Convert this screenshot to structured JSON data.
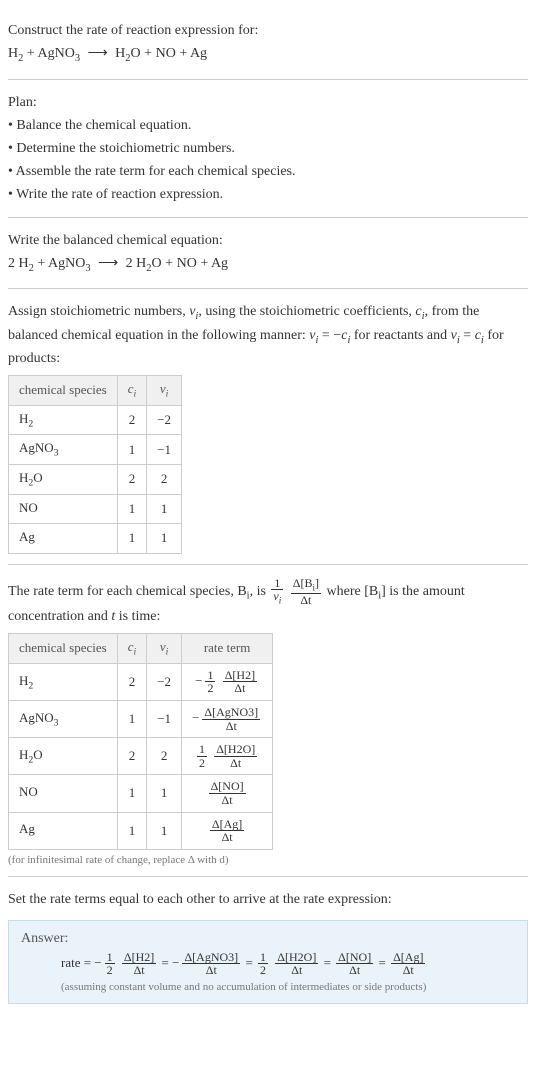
{
  "intro": {
    "prompt": "Construct the rate of reaction expression for:",
    "unbalanced_lhs_1": "H",
    "unbalanced_lhs_1_sub": "2",
    "plus1": " + ",
    "unbalanced_lhs_2": "AgNO",
    "unbalanced_lhs_2_sub": "3",
    "arrow": "⟶",
    "unbalanced_rhs_1": "H",
    "unbalanced_rhs_1_sub": "2",
    "unbalanced_rhs_1_tail": "O",
    "plus2": " + ",
    "unbalanced_rhs_2": "NO",
    "plus3": " + ",
    "unbalanced_rhs_3": "Ag"
  },
  "plan": {
    "heading": "Plan:",
    "b1": "• Balance the chemical equation.",
    "b2": "• Determine the stoichiometric numbers.",
    "b3": "• Assemble the rate term for each chemical species.",
    "b4": "• Write the rate of reaction expression."
  },
  "balanced": {
    "heading": "Write the balanced chemical equation:",
    "c1": "2 H",
    "c1_sub": "2",
    "plus1": " + ",
    "c2": "AgNO",
    "c2_sub": "3",
    "arrow": "⟶",
    "p1": "2 H",
    "p1_sub": "2",
    "p1_tail": "O",
    "plus2": " + ",
    "p2": "NO",
    "plus3": " + ",
    "p3": "Ag"
  },
  "stoich": {
    "heading_pre": "Assign stoichiometric numbers, ",
    "nu_i": "ν",
    "nu_i_sub": "i",
    "heading_mid1": ", using the stoichiometric coefficients, ",
    "c_i": "c",
    "c_i_sub": "i",
    "heading_mid2": ", from the balanced chemical equation in the following manner: ",
    "rel_react": "ν",
    "rel_react_sub": "i",
    "rel_react_eq": " = −",
    "rel_react_c": "c",
    "rel_react_c_sub": "i",
    "rel_react_tail": " for reactants and ",
    "rel_prod": "ν",
    "rel_prod_sub": "i",
    "rel_prod_eq": " = ",
    "rel_prod_c": "c",
    "rel_prod_c_sub": "i",
    "rel_prod_tail": " for products:"
  },
  "table1": {
    "h_species": "chemical species",
    "h_ci": "c",
    "h_ci_sub": "i",
    "h_vi": "ν",
    "h_vi_sub": "i",
    "rows": [
      {
        "sp": "H",
        "sp_sub": "2",
        "sp_tail": "",
        "ci": "2",
        "vi": "−2"
      },
      {
        "sp": "AgNO",
        "sp_sub": "3",
        "sp_tail": "",
        "ci": "1",
        "vi": "−1"
      },
      {
        "sp": "H",
        "sp_sub": "2",
        "sp_tail": "O",
        "ci": "2",
        "vi": "2"
      },
      {
        "sp": "NO",
        "sp_sub": "",
        "sp_tail": "",
        "ci": "1",
        "vi": "1"
      },
      {
        "sp": "Ag",
        "sp_sub": "",
        "sp_tail": "",
        "ci": "1",
        "vi": "1"
      }
    ]
  },
  "rateterm": {
    "pre": "The rate term for each chemical species, B",
    "pre_sub": "i",
    "mid1": ", is ",
    "f1_num": "1",
    "f1_den": "ν",
    "f1_den_sub": "i",
    "f2_num_pre": "Δ[B",
    "f2_num_sub": "i",
    "f2_num_post": "]",
    "f2_den": "Δt",
    "mid2": " where [B",
    "mid2_sub": "i",
    "mid3": "] is the amount concentration and ",
    "t": "t",
    "mid4": " is time:"
  },
  "table2": {
    "h_species": "chemical species",
    "h_ci": "c",
    "h_ci_sub": "i",
    "h_vi": "ν",
    "h_vi_sub": "i",
    "h_rate": "rate term",
    "rows": [
      {
        "sp": "H",
        "sp_sub": "2",
        "sp_tail": "",
        "ci": "2",
        "vi": "−2",
        "neg": "−",
        "coef_num": "1",
        "coef_den": "2",
        "d_num": "Δ[H2]",
        "d_den": "Δt"
      },
      {
        "sp": "AgNO",
        "sp_sub": "3",
        "sp_tail": "",
        "ci": "1",
        "vi": "−1",
        "neg": "−",
        "coef_num": "",
        "coef_den": "",
        "d_num": "Δ[AgNO3]",
        "d_den": "Δt"
      },
      {
        "sp": "H",
        "sp_sub": "2",
        "sp_tail": "O",
        "ci": "2",
        "vi": "2",
        "neg": "",
        "coef_num": "1",
        "coef_den": "2",
        "d_num": "Δ[H2O]",
        "d_den": "Δt"
      },
      {
        "sp": "NO",
        "sp_sub": "",
        "sp_tail": "",
        "ci": "1",
        "vi": "1",
        "neg": "",
        "coef_num": "",
        "coef_den": "",
        "d_num": "Δ[NO]",
        "d_den": "Δt"
      },
      {
        "sp": "Ag",
        "sp_sub": "",
        "sp_tail": "",
        "ci": "1",
        "vi": "1",
        "neg": "",
        "coef_num": "",
        "coef_den": "",
        "d_num": "Δ[Ag]",
        "d_den": "Δt"
      }
    ],
    "footnote": "(for infinitesimal rate of change, replace Δ with d)"
  },
  "final": {
    "heading": "Set the rate terms equal to each other to arrive at the rate expression:"
  },
  "answer": {
    "label": "Answer:",
    "rate_eq": "rate = ",
    "t1_neg": "−",
    "t1_cnum": "1",
    "t1_cden": "2",
    "t1_num": "Δ[H2]",
    "t1_den": "Δt",
    "eq1": " = ",
    "t2_neg": "−",
    "t2_num": "Δ[AgNO3]",
    "t2_den": "Δt",
    "eq2": " = ",
    "t3_cnum": "1",
    "t3_cden": "2",
    "t3_num": "Δ[H2O]",
    "t3_den": "Δt",
    "eq3": " = ",
    "t4_num": "Δ[NO]",
    "t4_den": "Δt",
    "eq4": " = ",
    "t5_num": "Δ[Ag]",
    "t5_den": "Δt",
    "note": "(assuming constant volume and no accumulation of intermediates or side products)"
  },
  "colors": {
    "text": "#333333",
    "border": "#cccccc",
    "header_bg": "#f0f0f0",
    "answer_bg": "#eaf3fa",
    "answer_border": "#c7dceb",
    "fine": "#777777"
  }
}
